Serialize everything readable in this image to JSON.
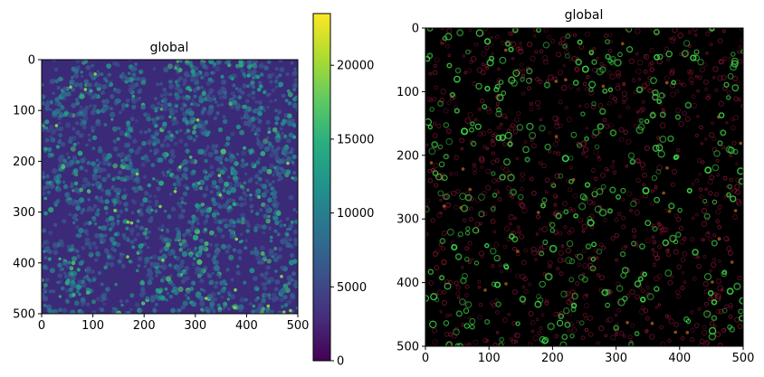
{
  "figure": {
    "left_panel": {
      "title": "global",
      "x_ticks": [
        "0",
        "100",
        "200",
        "300",
        "400",
        "500"
      ],
      "y_ticks": [
        "0",
        "100",
        "200",
        "300",
        "400",
        "500"
      ],
      "colormap": "viridis"
    },
    "colorbar": {
      "ticks": [
        "0",
        "5000",
        "10000",
        "15000",
        "20000"
      ],
      "range": [
        0,
        23500
      ]
    },
    "right_panel": {
      "title": "global",
      "x_ticks": [
        "0",
        "100",
        "200",
        "300",
        "400",
        "500"
      ],
      "y_ticks": [
        "0",
        "100",
        "200",
        "300",
        "400",
        "500"
      ],
      "colors": {
        "background": "#000000",
        "cells_green": "#3fd84a",
        "cells_red": "#a0183c",
        "cells_orange": "#c07020"
      }
    }
  }
}
